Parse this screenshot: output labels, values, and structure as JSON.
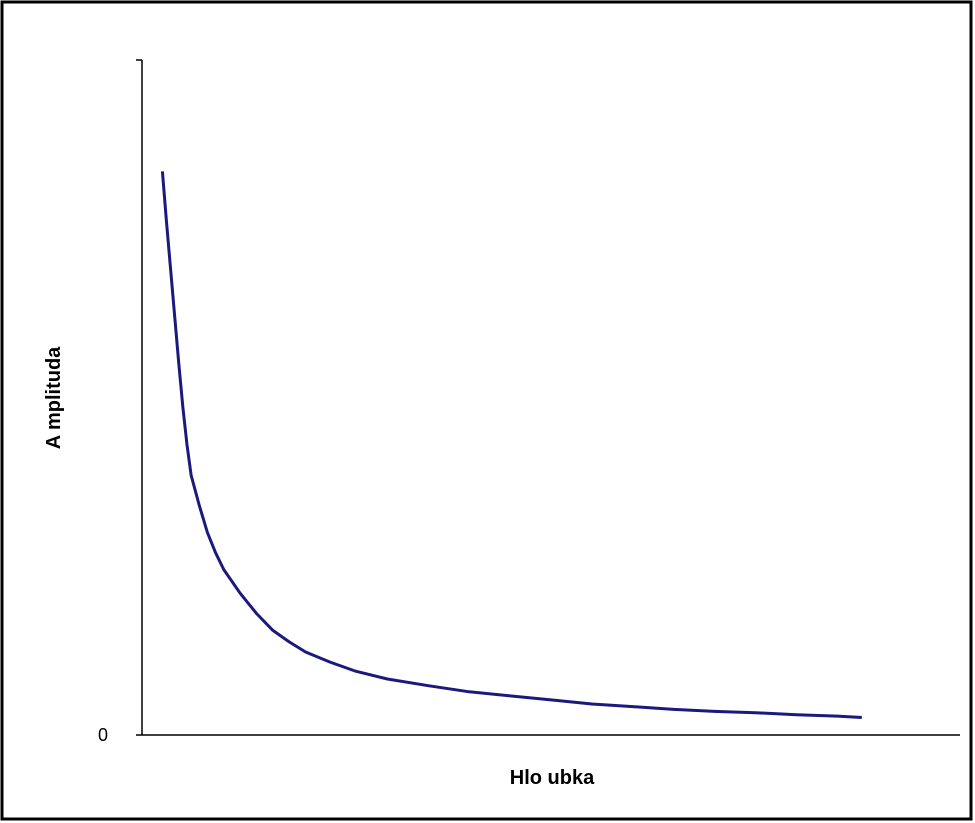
{
  "chart_data": {
    "type": "line",
    "title": "",
    "xlabel": "Hlo ubka",
    "ylabel": "A mplituda",
    "ylim": [
      0,
      100
    ],
    "xlim": [
      0,
      100
    ],
    "y_tick_labels": [
      "0"
    ],
    "grid": false,
    "legend": "none",
    "series": [
      {
        "color": "#1a1a7e",
        "x": [
          2.5,
          3,
          3.5,
          4,
          4.5,
          5,
          5.5,
          6,
          7,
          8,
          9,
          10,
          12,
          14,
          16,
          18,
          20,
          23,
          26,
          30,
          35,
          40,
          45,
          50,
          55,
          60,
          65,
          70,
          75,
          80,
          85,
          88
        ],
        "y": [
          83.5,
          76,
          69,
          62,
          55,
          48.5,
          43,
          38.5,
          34,
          30,
          27,
          24.5,
          21,
          18,
          15.5,
          13.8,
          12.3,
          10.8,
          9.5,
          8.3,
          7.3,
          6.4,
          5.8,
          5.2,
          4.6,
          4.2,
          3.8,
          3.5,
          3.3,
          3.0,
          2.8,
          2.6
        ]
      }
    ]
  },
  "colors": {
    "line": "#1a1a7e",
    "axis": "#000000",
    "frame": "#000000",
    "background": "#ffffff"
  }
}
